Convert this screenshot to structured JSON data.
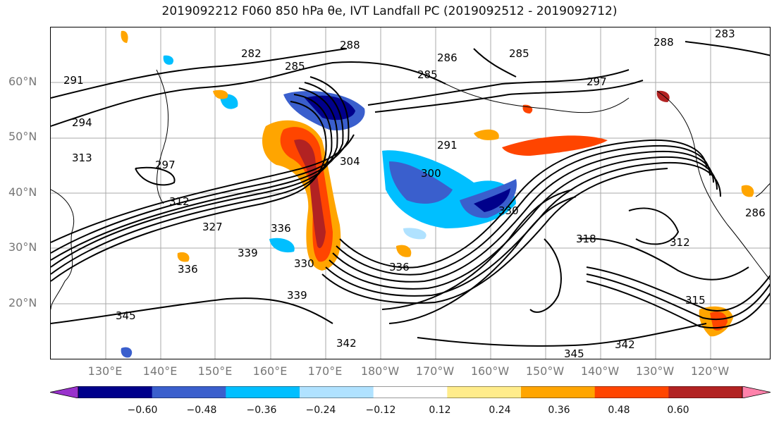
{
  "title": "2019092212 F060 850 hPa θe, IVT Landfall PC (2019092512 - 2019092712)",
  "lat_labels": [
    "60°N",
    "50°N",
    "40°N",
    "30°N",
    "20°N"
  ],
  "lon_labels": [
    "130°E",
    "140°E",
    "150°E",
    "160°E",
    "170°E",
    "180°W",
    "170°W",
    "160°W",
    "150°W",
    "140°W",
    "130°W",
    "120°W"
  ],
  "colorbar": {
    "ticks": [
      "−0.60",
      "−0.48",
      "−0.36",
      "−0.24",
      "−0.12",
      "0.12",
      "0.24",
      "0.36",
      "0.48",
      "0.60"
    ],
    "colors": [
      "#9932CC",
      "#00008B",
      "#3A5FCD",
      "#00BFFF",
      "#B0E2FF",
      "#FFFFFF",
      "#FFEC8B",
      "#FFA500",
      "#FF4500",
      "#B22222",
      "#FF82AB"
    ]
  },
  "contour_labels": [
    "282",
    "285",
    "288",
    "285",
    "286",
    "285",
    "288",
    "283",
    "291",
    "294",
    "297",
    "291",
    "297",
    "300",
    "304",
    "312",
    "313",
    "330",
    "327",
    "336",
    "339",
    "336",
    "339",
    "345",
    "342",
    "345",
    "342",
    "315",
    "318",
    "312",
    "330",
    "336",
    "286"
  ]
}
